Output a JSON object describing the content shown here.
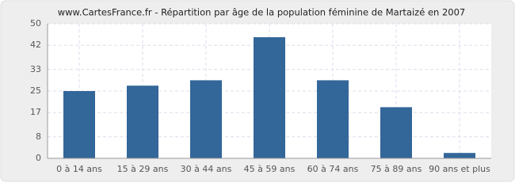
{
  "chart_data": {
    "type": "bar",
    "title": "www.CartesFrance.fr - Répartition par âge de la population féminine de Martaizé en 2007",
    "categories": [
      "0 à 14 ans",
      "15 à 29 ans",
      "30 à 44 ans",
      "45 à 59 ans",
      "60 à 74 ans",
      "75 à 89 ans",
      "90 ans et plus"
    ],
    "values": [
      25,
      27,
      29,
      45,
      29,
      19,
      2
    ],
    "color": "#336699",
    "ylim": [
      0,
      50
    ],
    "yticks": [
      0,
      8,
      17,
      25,
      33,
      42,
      50
    ],
    "grid": true
  }
}
